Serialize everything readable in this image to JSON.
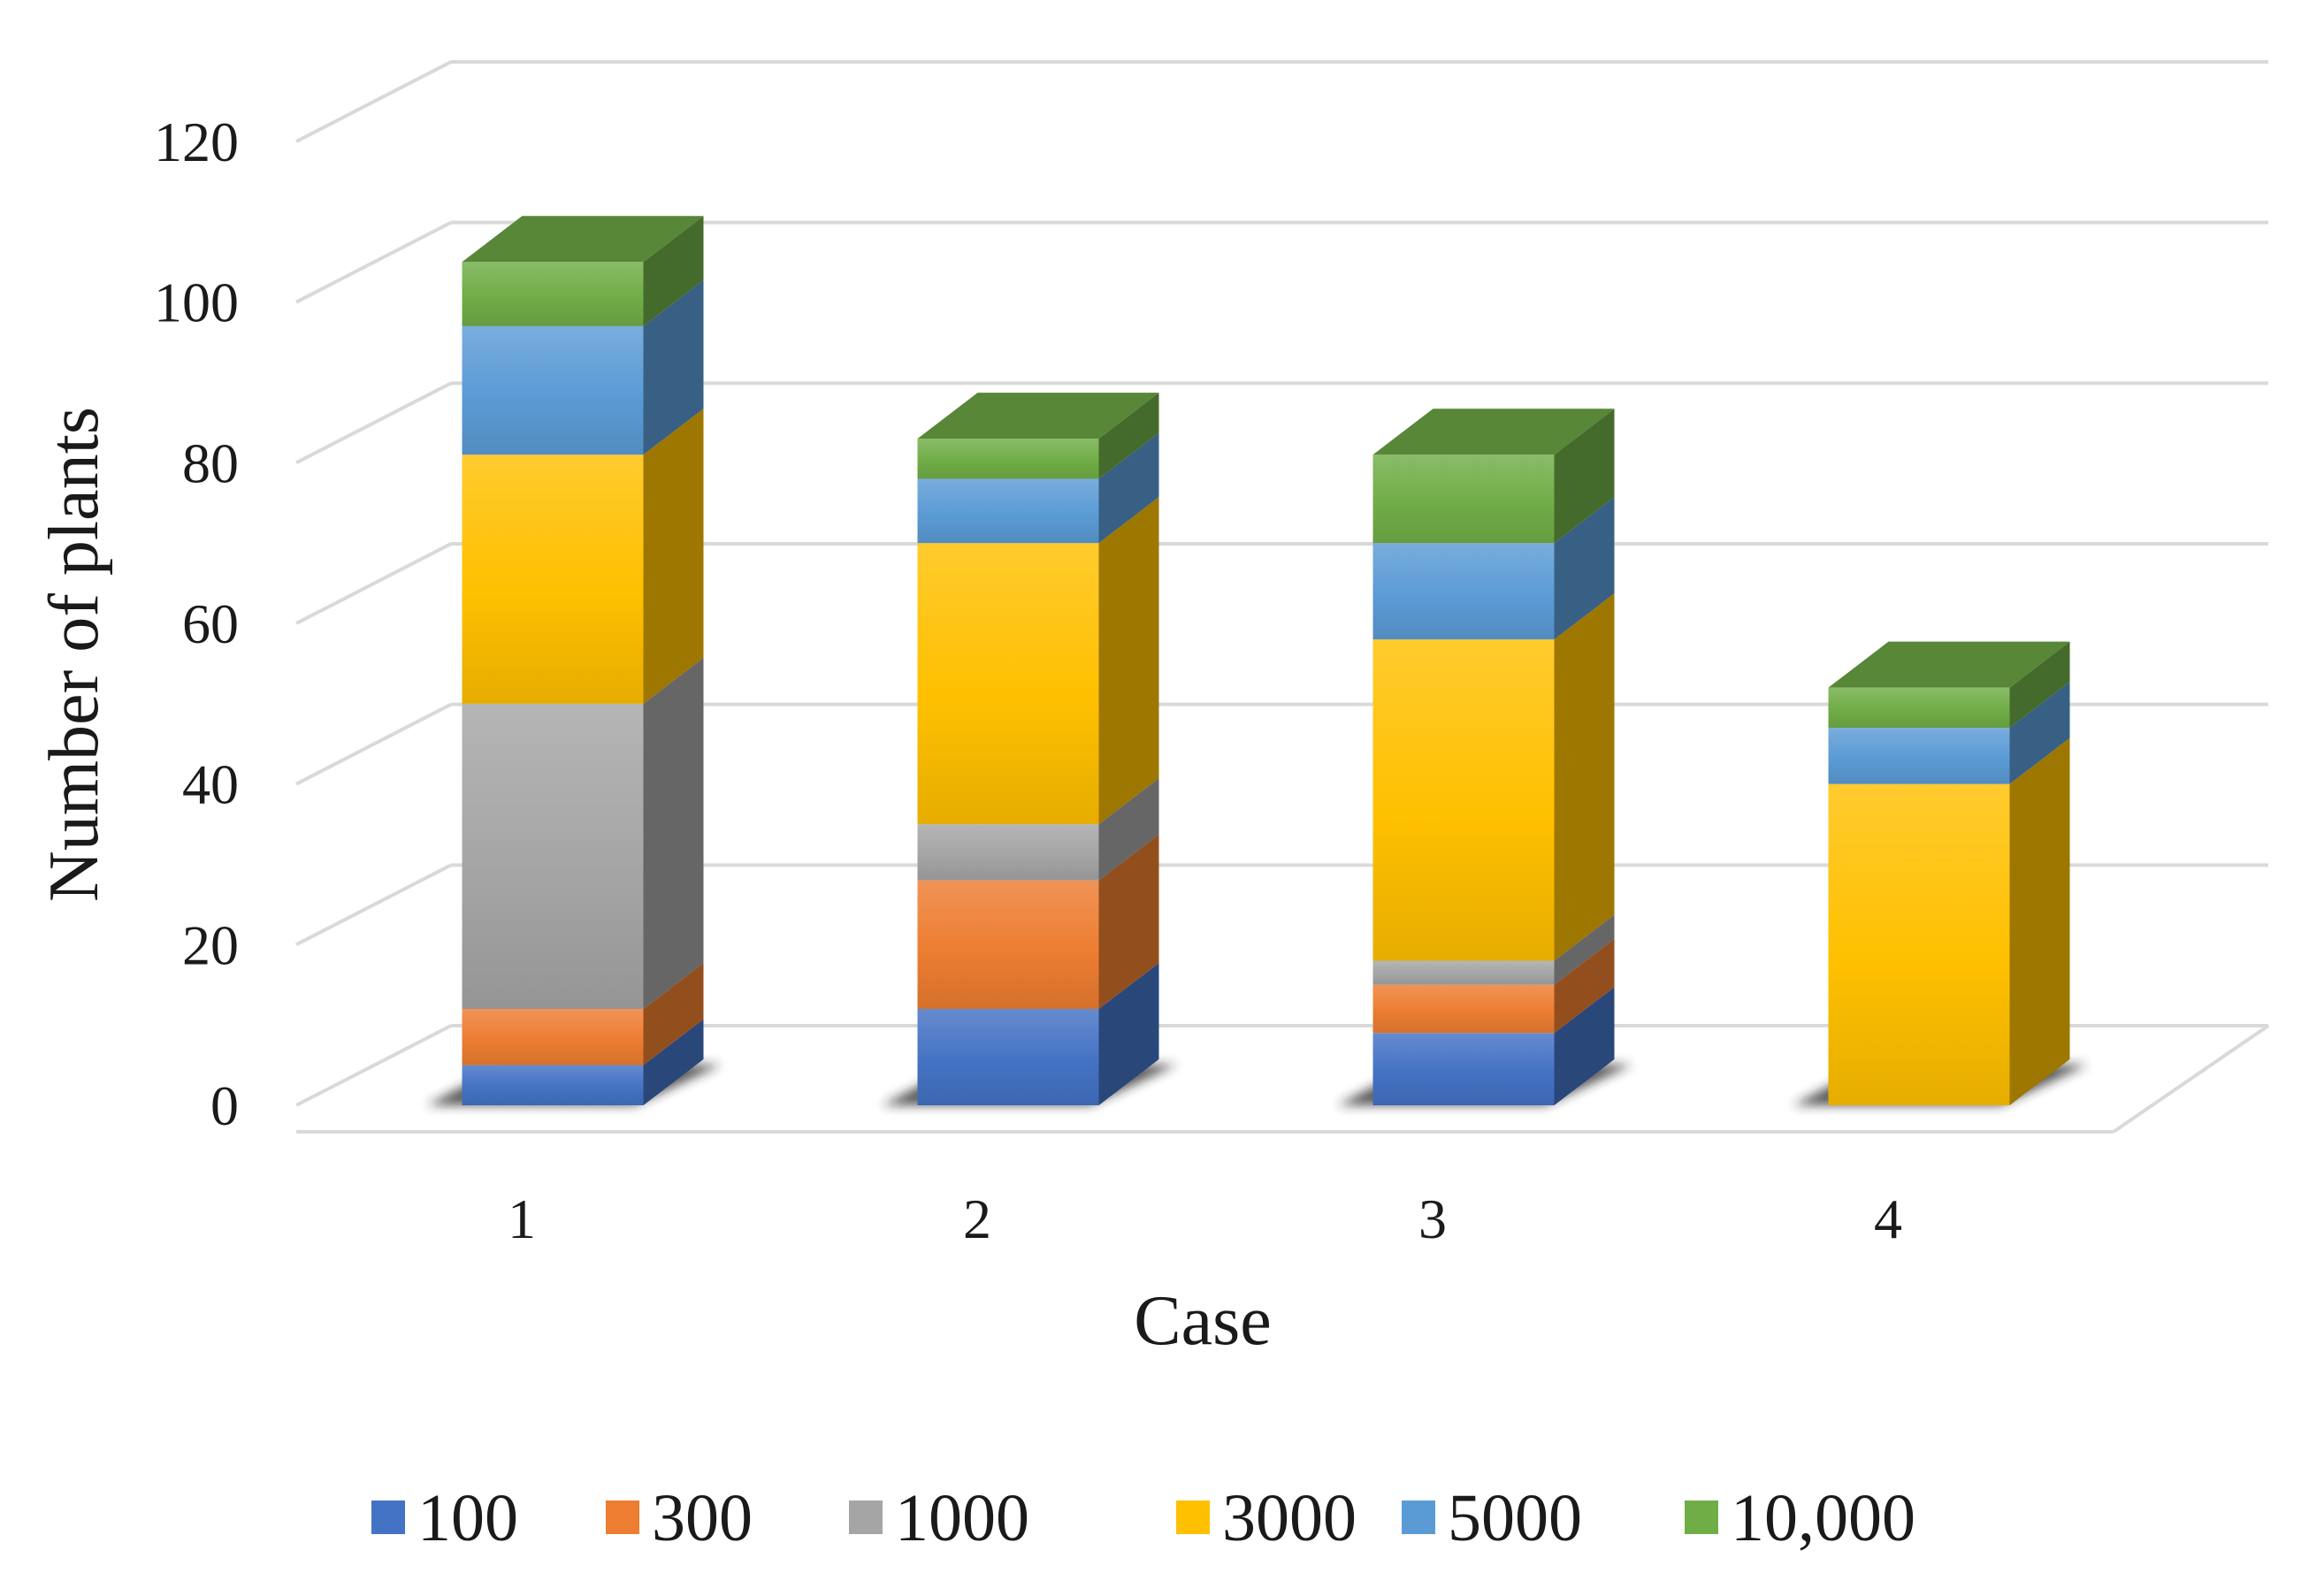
{
  "chart_data": {
    "type": "bar",
    "stacked": true,
    "three_d": true,
    "title": "",
    "xlabel": "Case",
    "ylabel": "Number of plants",
    "categories": [
      "1",
      "2",
      "3",
      "4"
    ],
    "ylim": [
      0,
      120
    ],
    "yticks": [
      "0",
      "20",
      "40",
      "60",
      "80",
      "100",
      "120"
    ],
    "grid": true,
    "legend_position": "bottom",
    "series": [
      {
        "name": "100",
        "color": "#4472C4",
        "values": [
          5,
          12,
          9,
          0
        ]
      },
      {
        "name": "300",
        "color": "#ED7D31",
        "values": [
          7,
          16,
          6,
          0
        ]
      },
      {
        "name": "1000",
        "color": "#A5A5A5",
        "values": [
          38,
          7,
          3,
          0
        ]
      },
      {
        "name": "3000",
        "color": "#FFC000",
        "values": [
          31,
          35,
          40,
          40
        ]
      },
      {
        "name": "5000",
        "color": "#5B9BD5",
        "values": [
          16,
          8,
          12,
          7
        ]
      },
      {
        "name": "10,000",
        "color": "#70AD47",
        "values": [
          8,
          5,
          11,
          5
        ]
      }
    ]
  }
}
